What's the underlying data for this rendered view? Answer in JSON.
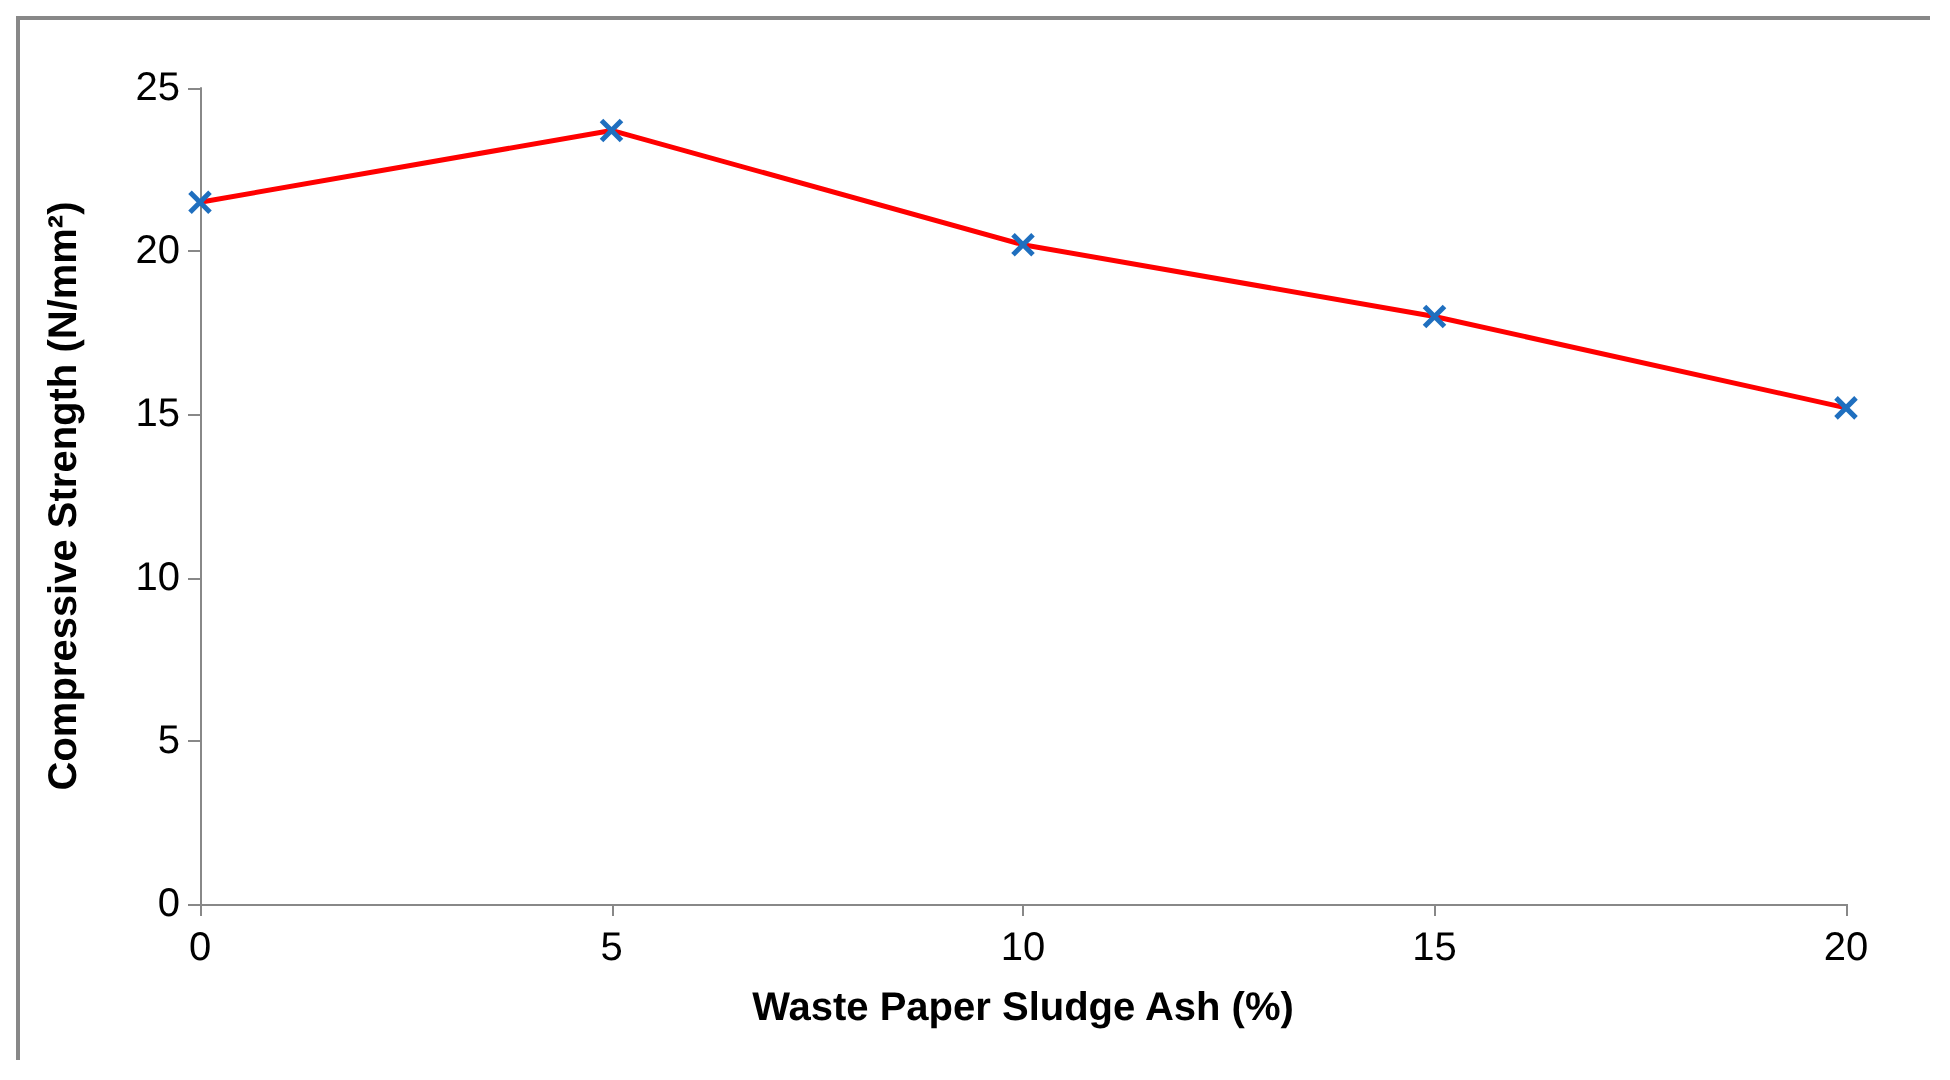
{
  "chart_data": {
    "type": "line",
    "xlabel": "Waste Paper Sludge Ash (%)",
    "ylabel": "Compressive Strength (N/mm²)",
    "x": [
      0,
      5,
      10,
      15,
      20
    ],
    "series": [
      {
        "color": "#ff0000",
        "colors": [
          "#1f6fbf",
          "#1f6fbf",
          "#1f6fbf",
          "#1f6fbf",
          "#1f6fbf"
        ],
        "values": [
          21.5,
          23.7,
          20.2,
          18.0,
          15.2
        ]
      }
    ],
    "xlim": [
      0,
      20
    ],
    "xticks": [
      0,
      5,
      10,
      15,
      20
    ],
    "ylim": [
      0,
      25
    ],
    "yticks": [
      0,
      5,
      10,
      15,
      20,
      25
    ],
    "grid": false,
    "marker": "cross",
    "line_style": "solid"
  }
}
